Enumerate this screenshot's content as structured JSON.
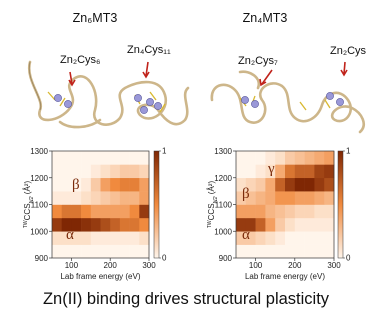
{
  "chart_data": [
    {
      "type": "heatmap",
      "title": "Zn₆MT3",
      "xlabel": "Lab frame energy (eV)",
      "ylabel": {
        "prefix": "TW",
        "main": "CCS",
        "sub": "N2",
        "unit": " (Å²)"
      },
      "x_bins": [
        50,
        75,
        100,
        125,
        150,
        175,
        200,
        225,
        250,
        275,
        300
      ],
      "y_bins": [
        900,
        950,
        1000,
        1050,
        1100,
        1150,
        1200,
        1250,
        1300
      ],
      "values": [
        [
          0,
          0,
          0,
          0,
          0,
          0,
          0,
          0,
          0,
          0
        ],
        [
          0.1,
          0.1,
          0.1,
          0.1,
          0.05,
          0.05,
          0.05,
          0.05,
          0.05,
          0.1
        ],
        [
          0.9,
          1,
          1,
          0.95,
          0.9,
          0.8,
          0.7,
          0.6,
          0.6,
          0.5
        ],
        [
          0.5,
          0.6,
          0.6,
          0.5,
          0.4,
          0.4,
          0.4,
          0.4,
          0.5,
          0.9
        ],
        [
          0.05,
          0.05,
          0.05,
          0.1,
          0.15,
          0.2,
          0.25,
          0.3,
          0.3,
          0.4
        ],
        [
          0,
          0,
          0,
          0.05,
          0.2,
          0.4,
          0.5,
          0.55,
          0.55,
          0.4
        ],
        [
          0,
          0,
          0,
          0,
          0.05,
          0.1,
          0.15,
          0.2,
          0.2,
          0.15
        ],
        [
          0,
          0,
          0,
          0,
          0,
          0,
          0,
          0,
          0,
          0
        ]
      ],
      "xlim": [
        50,
        300
      ],
      "xticks": [
        100,
        200,
        300
      ],
      "ylim": [
        900,
        1300
      ],
      "yticks": [
        900,
        1000,
        1100,
        1200,
        1300
      ],
      "clim": [
        0,
        1
      ],
      "cticks": [
        0,
        1
      ],
      "colormap": [
        "#fff5eb",
        "#f08a3e",
        "#7f2704"
      ],
      "annotations": [
        "α",
        "β"
      ]
    },
    {
      "type": "heatmap",
      "title": "Zn₄MT3",
      "xlabel": "Lab frame energy (eV)",
      "ylabel": {
        "prefix": "TW",
        "main": "CCS",
        "sub": "N2",
        "unit": " (Å²)"
      },
      "x_bins": [
        50,
        75,
        100,
        125,
        150,
        175,
        200,
        225,
        250,
        275,
        300
      ],
      "y_bins": [
        900,
        950,
        1000,
        1050,
        1100,
        1150,
        1200,
        1250,
        1300
      ],
      "values": [
        [
          0,
          0,
          0,
          0,
          0,
          0,
          0,
          0,
          0,
          0
        ],
        [
          0.2,
          0.2,
          0.15,
          0.1,
          0.05,
          0,
          0,
          0,
          0,
          0
        ],
        [
          0.9,
          0.9,
          0.7,
          0.4,
          0.2,
          0.1,
          0.05,
          0.05,
          0.05,
          0.05
        ],
        [
          0.4,
          0.4,
          0.4,
          0.3,
          0.25,
          0.2,
          0.15,
          0.15,
          0.1,
          0.1
        ],
        [
          0.2,
          0.25,
          0.3,
          0.35,
          0.45,
          0.45,
          0.4,
          0.4,
          0.35,
          0.3
        ],
        [
          0.1,
          0.15,
          0.2,
          0.35,
          0.7,
          0.9,
          1,
          1,
          0.9,
          0.8
        ],
        [
          0,
          0,
          0.05,
          0.1,
          0.35,
          0.6,
          0.7,
          0.7,
          0.85,
          0.9
        ],
        [
          0,
          0,
          0,
          0.05,
          0.1,
          0.2,
          0.25,
          0.3,
          0.35,
          0.4
        ]
      ],
      "xlim": [
        50,
        300
      ],
      "xticks": [
        100,
        200,
        300
      ],
      "ylim": [
        900,
        1300
      ],
      "yticks": [
        900,
        1000,
        1100,
        1200,
        1300
      ],
      "clim": [
        0,
        1
      ],
      "cticks": [
        0,
        1
      ],
      "colormap": [
        "#fff5eb",
        "#f08a3e",
        "#7f2704"
      ],
      "annotations": [
        "γ",
        "β",
        "α"
      ]
    }
  ],
  "structures": [
    {
      "labels": [
        "Zn₂Cys₆",
        "Zn₄Cys₁₁"
      ]
    },
    {
      "labels": [
        "Zn₂Cys₇",
        "Zn₂Cys"
      ]
    }
  ],
  "caption": "Zn(II) binding drives structural plasticity"
}
